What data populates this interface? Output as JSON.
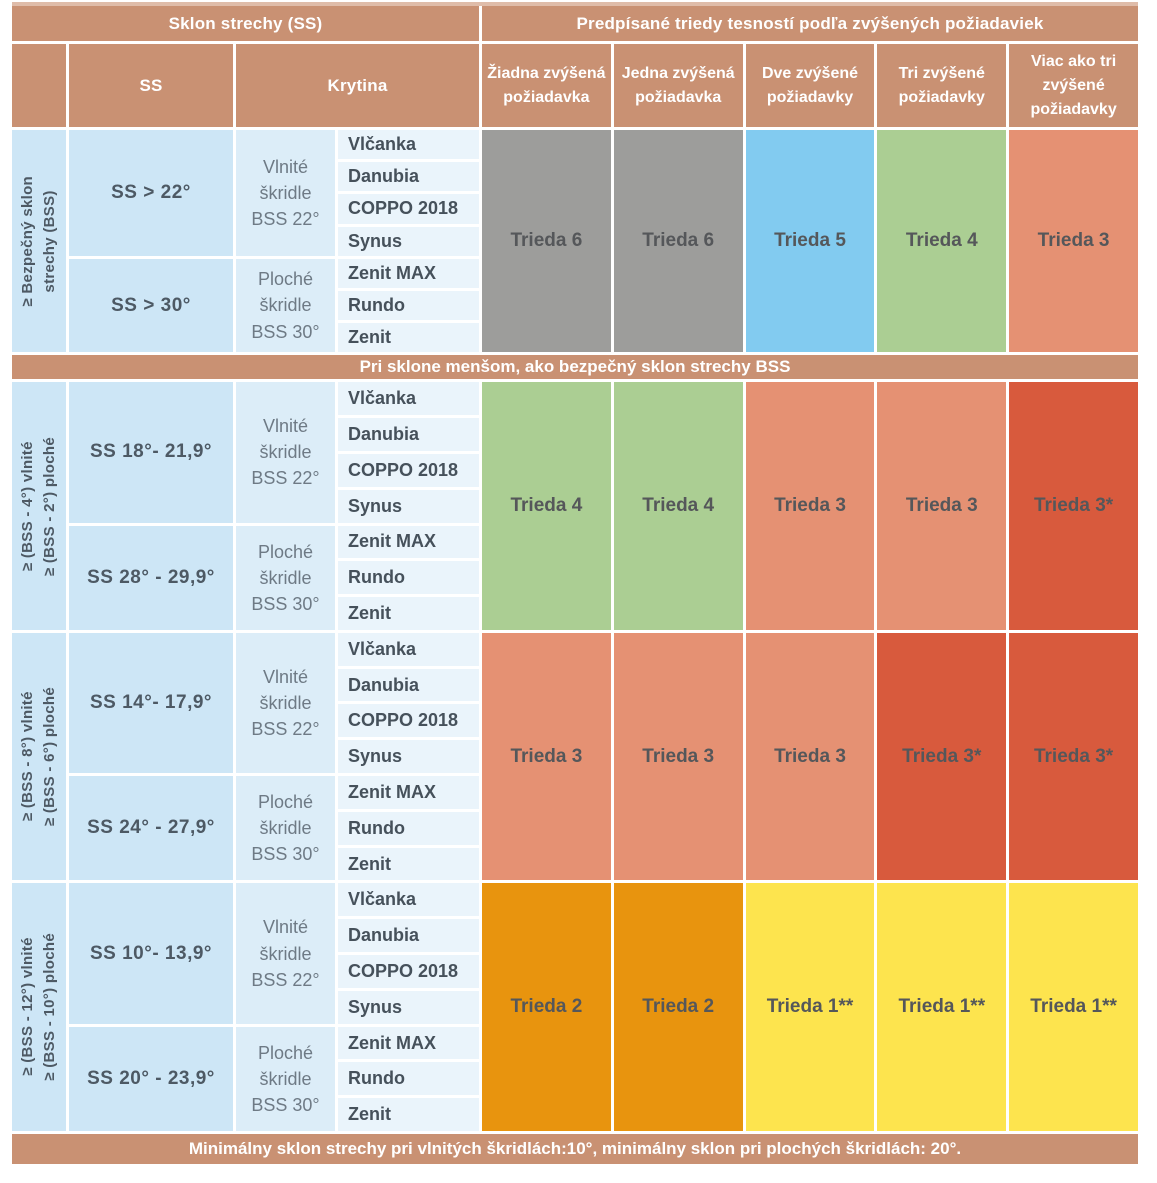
{
  "palette": {
    "header_bar": "#c99173",
    "top_strip": "#dfbca9",
    "row_blue": "#cde6f6",
    "krytina_blue": "#dcedf8",
    "product_blue": "#eaf4fb",
    "trieda6_gray": "#9d9d9b",
    "trieda5_blue": "#82cbf0",
    "trieda4_green": "#abce93",
    "trieda3_salmon": "#e59173",
    "trieda3_star_red": "#d85a3d",
    "trieda2_orange": "#e8940e",
    "trieda1_yellow": "#fde44e",
    "dark_text": "#4d5964",
    "class_text": "#55575a"
  },
  "header": {
    "left_title": "Sklon strechy (SS)",
    "right_title": "Predpísané triedy tesností podľa zvýšených požiadaviek",
    "col_ss": "SS",
    "col_krytina": "Krytina",
    "requirement_columns": [
      "Žiadna zvýšená požiadavka",
      "Jedna zvýšená požiadavka",
      "Dve zvýšené požiadavky",
      "Tri zvýšené požiadavky",
      "Viac ako tri zvýšené požiadavky"
    ]
  },
  "band_title": "Pri sklone menšom, ako bezpečný sklon strechy BSS",
  "footer_note": "Minimálny sklon strechy pri vlnitých škridlách:10°, minimálny sklon pri plochých škridlách: 20°.",
  "sections": [
    {
      "label_lines": [
        "≥ Bezpečný sklon",
        "strechy (BSS)"
      ],
      "groups": [
        {
          "ss": "SS > 22°",
          "krytina_lines": [
            "Vlnité",
            "škridle",
            "BSS 22°"
          ],
          "products": [
            "Vlčanka",
            "Danubia",
            "COPPO 2018",
            "Synus"
          ]
        },
        {
          "ss": "SS > 30°",
          "krytina_lines": [
            "Ploché",
            "škridle",
            "BSS 30°"
          ],
          "products": [
            "Zenit MAX",
            "Rundo",
            "Zenit"
          ]
        }
      ],
      "classes": [
        {
          "label": "Trieda 6",
          "color": "#9d9d9b"
        },
        {
          "label": "Trieda 6",
          "color": "#9d9d9b"
        },
        {
          "label": "Trieda 5",
          "color": "#82cbf0"
        },
        {
          "label": "Trieda 4",
          "color": "#abce93"
        },
        {
          "label": "Trieda 3",
          "color": "#e59173"
        }
      ]
    },
    {
      "label_lines": [
        "≥ (BSS - 4°) vlnité",
        "≥ (BSS - 2°) ploché"
      ],
      "groups": [
        {
          "ss": "SS 18°- 21,9°",
          "krytina_lines": [
            "Vlnité",
            "škridle",
            "BSS 22°"
          ],
          "products": [
            "Vlčanka",
            "Danubia",
            "COPPO 2018",
            "Synus"
          ]
        },
        {
          "ss": "SS 28° - 29,9°",
          "krytina_lines": [
            "Ploché",
            "škridle",
            "BSS 30°"
          ],
          "products": [
            "Zenit MAX",
            "Rundo",
            "Zenit"
          ]
        }
      ],
      "classes": [
        {
          "label": "Trieda 4",
          "color": "#abce93"
        },
        {
          "label": "Trieda 4",
          "color": "#abce93"
        },
        {
          "label": "Trieda 3",
          "color": "#e59173"
        },
        {
          "label": "Trieda 3",
          "color": "#e59173"
        },
        {
          "label": "Trieda 3*",
          "color": "#d85a3d"
        }
      ]
    },
    {
      "label_lines": [
        "≥ (BSS - 8°) vlnité",
        "≥ (BSS - 6°) ploché"
      ],
      "groups": [
        {
          "ss": "SS 14°- 17,9°",
          "krytina_lines": [
            "Vlnité",
            "škridle",
            "BSS 22°"
          ],
          "products": [
            "Vlčanka",
            "Danubia",
            "COPPO 2018",
            "Synus"
          ]
        },
        {
          "ss": "SS 24° - 27,9°",
          "krytina_lines": [
            "Ploché",
            "škridle",
            "BSS 30°"
          ],
          "products": [
            "Zenit MAX",
            "Rundo",
            "Zenit"
          ]
        }
      ],
      "classes": [
        {
          "label": "Trieda 3",
          "color": "#e59173"
        },
        {
          "label": "Trieda 3",
          "color": "#e59173"
        },
        {
          "label": "Trieda 3",
          "color": "#e59173"
        },
        {
          "label": "Trieda 3*",
          "color": "#d85a3d"
        },
        {
          "label": "Trieda 3*",
          "color": "#d85a3d"
        }
      ]
    },
    {
      "label_lines": [
        "≥ (BSS - 12°) vlnité",
        "≥ (BSS - 10°) ploché"
      ],
      "groups": [
        {
          "ss": "SS 10°- 13,9°",
          "krytina_lines": [
            "Vlnité",
            "škridle",
            "BSS 22°"
          ],
          "products": [
            "Vlčanka",
            "Danubia",
            "COPPO 2018",
            "Synus"
          ]
        },
        {
          "ss": "SS 20° - 23,9°",
          "krytina_lines": [
            "Ploché",
            "škridle",
            "BSS 30°"
          ],
          "products": [
            "Zenit MAX",
            "Rundo",
            "Zenit"
          ]
        }
      ],
      "classes": [
        {
          "label": "Trieda 2",
          "color": "#e8940e"
        },
        {
          "label": "Trieda 2",
          "color": "#e8940e"
        },
        {
          "label": "Trieda 1**",
          "color": "#fde44e"
        },
        {
          "label": "Trieda 1**",
          "color": "#fde44e"
        },
        {
          "label": "Trieda 1**",
          "color": "#fde44e"
        }
      ]
    }
  ]
}
